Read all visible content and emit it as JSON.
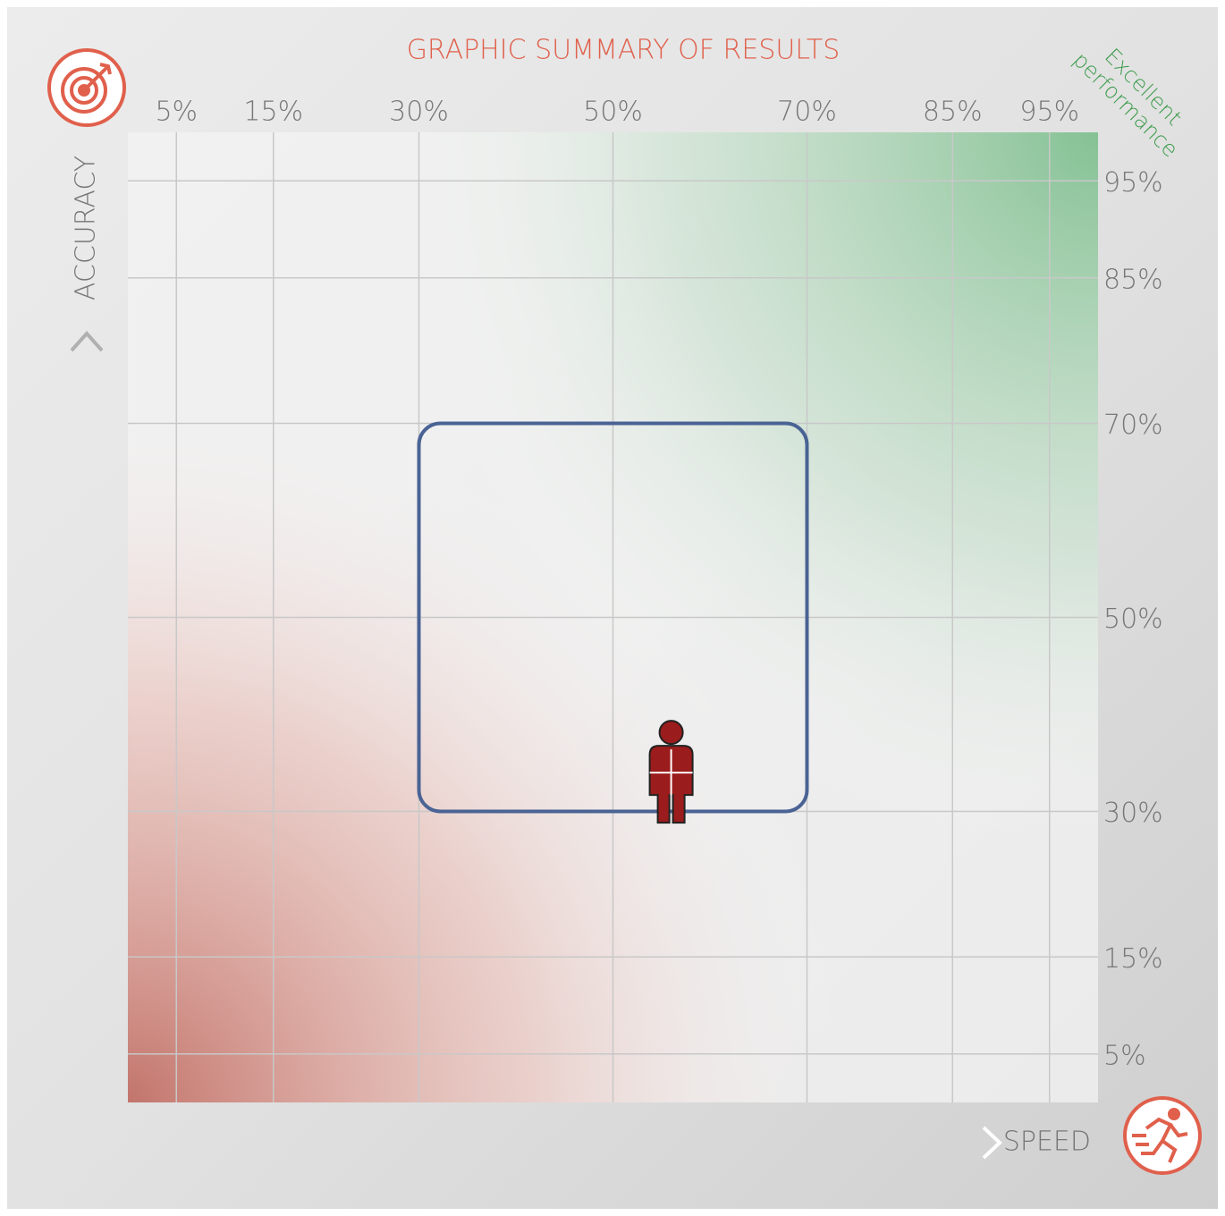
{
  "chart_data": {
    "type": "scatter",
    "title": "GRAPHIC SUMMARY OF RESULTS",
    "x_label": "SPEED",
    "y_label": "ACCURACY",
    "annotation": [
      "Excellent",
      "performance"
    ],
    "xlim": [
      0,
      100
    ],
    "ylim": [
      0,
      100
    ],
    "xticks": [
      {
        "value": 5,
        "label": "5%"
      },
      {
        "value": 15,
        "label": "15%"
      },
      {
        "value": 30,
        "label": "30%"
      },
      {
        "value": 50,
        "label": "50%"
      },
      {
        "value": 70,
        "label": "70%"
      },
      {
        "value": 85,
        "label": "85%"
      },
      {
        "value": 95,
        "label": "95%"
      }
    ],
    "yticks": [
      {
        "value": 5,
        "label": "5%"
      },
      {
        "value": 15,
        "label": "15%"
      },
      {
        "value": 30,
        "label": "30%"
      },
      {
        "value": 50,
        "label": "50%"
      },
      {
        "value": 70,
        "label": "70%"
      },
      {
        "value": 85,
        "label": "85%"
      },
      {
        "value": 95,
        "label": "95%"
      }
    ],
    "grid": true,
    "range_box": {
      "x": [
        30,
        70
      ],
      "y": [
        30,
        70
      ],
      "color": "#4a6394"
    },
    "series": [
      {
        "x": [
          56
        ],
        "values": [
          34
        ],
        "color": "#9b1c1c"
      }
    ]
  }
}
